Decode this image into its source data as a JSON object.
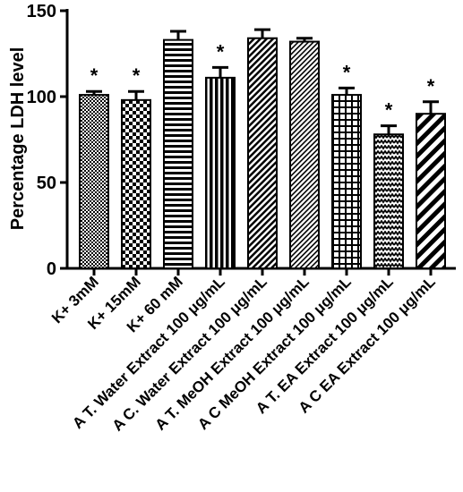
{
  "chart_data": {
    "type": "bar",
    "ylabel": "Percentage LDH level",
    "ylim": [
      0,
      150
    ],
    "yticks": [
      "0",
      "50",
      "100",
      "150"
    ],
    "grid": false,
    "categories": [
      "K+ 3mM",
      "K+ 15mM",
      "K+ 60 mM",
      "A T. Water Extract 100 μg/mL",
      "A C. Water Extract 100 μg/mL",
      "A T. MeOH Extract 100 μg/mL",
      "A C MeOH Extract 100 μg/mL",
      "A T. EA Extract 100 μg/mL",
      "A C EA Extract 100 μg/mL"
    ],
    "values": [
      101,
      98,
      133,
      111,
      134,
      132,
      101,
      78,
      90
    ],
    "errors": [
      2,
      5,
      5,
      6,
      5,
      2,
      4,
      5,
      7
    ],
    "significance": [
      "*",
      "*",
      "",
      "*",
      "",
      "",
      "*",
      "*",
      "*"
    ],
    "patterns": [
      "checker-fine",
      "checker-coarse",
      "hlines",
      "vlines",
      "diag-dense",
      "diag-fine",
      "grid",
      "zigzag",
      "diag-wide"
    ]
  }
}
